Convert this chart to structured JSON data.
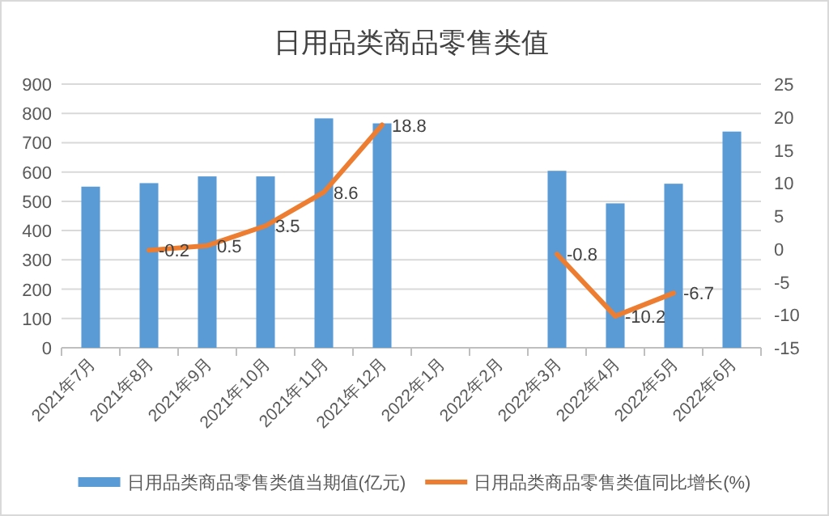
{
  "chart_data": {
    "type": "bar",
    "title": "日用品类商品零售类值",
    "categories": [
      "2021年7月",
      "2021年8月",
      "2021年9月",
      "2021年10月",
      "2021年11月",
      "2021年12月",
      "2022年1月",
      "2022年2月",
      "2022年3月",
      "2022年4月",
      "2022年5月",
      "2022年6月"
    ],
    "series": [
      {
        "name": "日用品类商品零售类值当期值(亿元)",
        "color": "#5b9bd5",
        "values": [
          550,
          562,
          585,
          585,
          783,
          766,
          null,
          null,
          604,
          493,
          560,
          738
        ]
      },
      {
        "name": "日用品类商品零售类值同比增长(%)",
        "type": "line",
        "axis": "y2",
        "color": "#ed7d31",
        "values": [
          null,
          -0.2,
          0.5,
          3.5,
          8.6,
          18.8,
          null,
          null,
          -0.8,
          -10.2,
          -6.7,
          null
        ],
        "value_labels": [
          null,
          "-0.2",
          "0.5",
          "3.5",
          "8.6",
          "18.8",
          null,
          null,
          "-0.8",
          "-10.2",
          "-6.7",
          null
        ]
      }
    ],
    "ylim": [
      0,
      900
    ],
    "yticks": [
      0,
      100,
      200,
      300,
      400,
      500,
      600,
      700,
      800,
      900
    ],
    "y2lim": [
      -15,
      25
    ],
    "y2ticks": [
      -15,
      -10,
      -5,
      0,
      5,
      10,
      15,
      20,
      25
    ],
    "grid": "y",
    "legend": "bottom"
  }
}
